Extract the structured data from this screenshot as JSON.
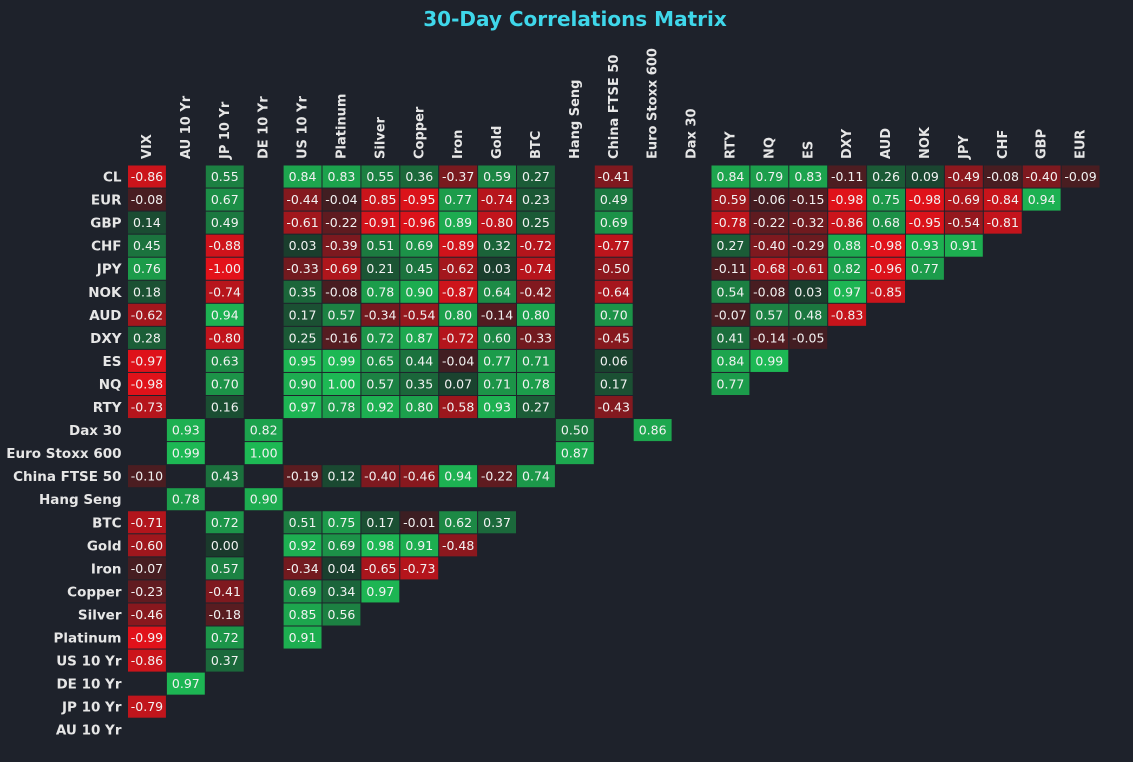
{
  "chart_data": {
    "type": "heatmap",
    "title": "30-Day Correlations Matrix",
    "columns": [
      "VIX",
      "AU 10 Yr",
      "JP 10 Yr",
      "DE 10 Yr",
      "US 10 Yr",
      "Platinum",
      "Silver",
      "Copper",
      "Iron",
      "Gold",
      "BTC",
      "Hang Seng",
      "China FTSE 50",
      "Euro Stoxx 600",
      "Dax 30",
      "RTY",
      "NQ",
      "ES",
      "DXY",
      "AUD",
      "NOK",
      "JPY",
      "CHF",
      "GBP",
      "EUR"
    ],
    "rows": [
      "CL",
      "EUR",
      "GBP",
      "CHF",
      "JPY",
      "NOK",
      "AUD",
      "DXY",
      "ES",
      "NQ",
      "RTY",
      "Dax 30",
      "Euro Stoxx 600",
      "China FTSE 50",
      "Hang Seng",
      "BTC",
      "Gold",
      "Iron",
      "Copper",
      "Silver",
      "Platinum",
      "US 10 Yr",
      "DE 10 Yr",
      "JP 10 Yr",
      "AU 10 Yr"
    ],
    "values": [
      [
        -0.86,
        null,
        0.55,
        null,
        0.84,
        0.83,
        0.55,
        0.36,
        -0.37,
        0.59,
        0.27,
        null,
        -0.41,
        null,
        null,
        0.84,
        0.79,
        0.83,
        -0.11,
        0.26,
        0.09,
        -0.49,
        -0.08,
        -0.4,
        -0.09
      ],
      [
        -0.08,
        null,
        0.67,
        null,
        -0.44,
        -0.04,
        -0.85,
        -0.95,
        0.77,
        -0.74,
        0.23,
        null,
        0.49,
        null,
        null,
        -0.59,
        -0.06,
        -0.15,
        -0.98,
        0.75,
        -0.98,
        -0.69,
        -0.84,
        0.94,
        null
      ],
      [
        0.14,
        null,
        0.49,
        null,
        -0.61,
        -0.22,
        -0.91,
        -0.96,
        0.89,
        -0.8,
        0.25,
        null,
        0.69,
        null,
        null,
        -0.78,
        -0.22,
        -0.32,
        -0.86,
        0.68,
        -0.95,
        -0.54,
        -0.81,
        null,
        null
      ],
      [
        0.45,
        null,
        -0.88,
        null,
        0.03,
        -0.39,
        0.51,
        0.69,
        -0.89,
        0.32,
        -0.72,
        null,
        -0.77,
        null,
        null,
        0.27,
        -0.4,
        -0.29,
        0.88,
        -0.98,
        0.93,
        0.91,
        null,
        null,
        null
      ],
      [
        0.76,
        null,
        -1.0,
        null,
        -0.33,
        -0.69,
        0.21,
        0.45,
        -0.62,
        0.03,
        -0.74,
        null,
        -0.5,
        null,
        null,
        -0.11,
        -0.68,
        -0.61,
        0.82,
        -0.96,
        0.77,
        null,
        null,
        null,
        null
      ],
      [
        0.18,
        null,
        -0.74,
        null,
        0.35,
        -0.08,
        0.78,
        0.9,
        -0.87,
        0.64,
        -0.42,
        null,
        -0.64,
        null,
        null,
        0.54,
        -0.08,
        0.03,
        0.97,
        -0.85,
        null,
        null,
        null,
        null,
        null
      ],
      [
        -0.62,
        null,
        0.94,
        null,
        0.17,
        0.57,
        -0.34,
        -0.54,
        0.8,
        -0.14,
        0.8,
        null,
        0.7,
        null,
        null,
        -0.07,
        0.57,
        0.48,
        -0.83,
        null,
        null,
        null,
        null,
        null,
        null
      ],
      [
        0.28,
        null,
        -0.8,
        null,
        0.25,
        -0.16,
        0.72,
        0.87,
        -0.72,
        0.6,
        -0.33,
        null,
        -0.45,
        null,
        null,
        0.41,
        -0.14,
        -0.05,
        null,
        null,
        null,
        null,
        null,
        null,
        null
      ],
      [
        -0.97,
        null,
        0.63,
        null,
        0.95,
        0.99,
        0.65,
        0.44,
        -0.04,
        0.77,
        0.71,
        null,
        0.06,
        null,
        null,
        0.84,
        0.99,
        null,
        null,
        null,
        null,
        null,
        null,
        null,
        null
      ],
      [
        -0.98,
        null,
        0.7,
        null,
        0.9,
        1.0,
        0.57,
        0.35,
        0.07,
        0.71,
        0.78,
        null,
        0.17,
        null,
        null,
        0.77,
        null,
        null,
        null,
        null,
        null,
        null,
        null,
        null,
        null
      ],
      [
        -0.73,
        null,
        0.16,
        null,
        0.97,
        0.78,
        0.92,
        0.8,
        -0.58,
        0.93,
        0.27,
        null,
        -0.43,
        null,
        null,
        null,
        null,
        null,
        null,
        null,
        null,
        null,
        null,
        null,
        null
      ],
      [
        null,
        0.93,
        null,
        0.82,
        null,
        null,
        null,
        null,
        null,
        null,
        null,
        0.5,
        null,
        0.86,
        null,
        null,
        null,
        null,
        null,
        null,
        null,
        null,
        null,
        null,
        null
      ],
      [
        null,
        0.99,
        null,
        1.0,
        null,
        null,
        null,
        null,
        null,
        null,
        null,
        0.87,
        null,
        null,
        null,
        null,
        null,
        null,
        null,
        null,
        null,
        null,
        null,
        null,
        null
      ],
      [
        -0.1,
        null,
        0.43,
        null,
        -0.19,
        0.12,
        -0.4,
        -0.46,
        0.94,
        -0.22,
        0.74,
        null,
        null,
        null,
        null,
        null,
        null,
        null,
        null,
        null,
        null,
        null,
        null,
        null,
        null
      ],
      [
        null,
        0.78,
        null,
        0.9,
        null,
        null,
        null,
        null,
        null,
        null,
        null,
        null,
        null,
        null,
        null,
        null,
        null,
        null,
        null,
        null,
        null,
        null,
        null,
        null,
        null
      ],
      [
        -0.71,
        null,
        0.72,
        null,
        0.51,
        0.75,
        0.17,
        -0.01,
        0.62,
        0.37,
        null,
        null,
        null,
        null,
        null,
        null,
        null,
        null,
        null,
        null,
        null,
        null,
        null,
        null,
        null
      ],
      [
        -0.6,
        null,
        0.0,
        null,
        0.92,
        0.69,
        0.98,
        0.91,
        -0.48,
        null,
        null,
        null,
        null,
        null,
        null,
        null,
        null,
        null,
        null,
        null,
        null,
        null,
        null,
        null,
        null
      ],
      [
        -0.07,
        null,
        0.57,
        null,
        -0.34,
        0.04,
        -0.65,
        -0.73,
        null,
        null,
        null,
        null,
        null,
        null,
        null,
        null,
        null,
        null,
        null,
        null,
        null,
        null,
        null,
        null,
        null
      ],
      [
        -0.23,
        null,
        -0.41,
        null,
        0.69,
        0.34,
        0.97,
        null,
        null,
        null,
        null,
        null,
        null,
        null,
        null,
        null,
        null,
        null,
        null,
        null,
        null,
        null,
        null,
        null,
        null
      ],
      [
        -0.46,
        null,
        -0.18,
        null,
        0.85,
        0.56,
        null,
        null,
        null,
        null,
        null,
        null,
        null,
        null,
        null,
        null,
        null,
        null,
        null,
        null,
        null,
        null,
        null,
        null,
        null
      ],
      [
        -0.99,
        null,
        0.72,
        null,
        0.91,
        null,
        null,
        null,
        null,
        null,
        null,
        null,
        null,
        null,
        null,
        null,
        null,
        null,
        null,
        null,
        null,
        null,
        null,
        null,
        null
      ],
      [
        -0.86,
        null,
        0.37,
        null,
        null,
        null,
        null,
        null,
        null,
        null,
        null,
        null,
        null,
        null,
        null,
        null,
        null,
        null,
        null,
        null,
        null,
        null,
        null,
        null,
        null
      ],
      [
        null,
        0.97,
        null,
        null,
        null,
        null,
        null,
        null,
        null,
        null,
        null,
        null,
        null,
        null,
        null,
        null,
        null,
        null,
        null,
        null,
        null,
        null,
        null,
        null,
        null
      ],
      [
        -0.79,
        null,
        null,
        null,
        null,
        null,
        null,
        null,
        null,
        null,
        null,
        null,
        null,
        null,
        null,
        null,
        null,
        null,
        null,
        null,
        null,
        null,
        null,
        null,
        null
      ],
      [
        null,
        null,
        null,
        null,
        null,
        null,
        null,
        null,
        null,
        null,
        null,
        null,
        null,
        null,
        null,
        null,
        null,
        null,
        null,
        null,
        null,
        null,
        null,
        null,
        null
      ]
    ],
    "value_range": [
      -1,
      1
    ],
    "colors": {
      "background": "#1e222b",
      "title": "#3fd7ea",
      "label": "#e6e6e6",
      "cell_text": "#f2f2f2",
      "negative_strong": "#e3121a",
      "negative_weak": "#3a1e22",
      "positive_weak": "#1a3a2c",
      "positive_strong": "#1db954"
    }
  }
}
